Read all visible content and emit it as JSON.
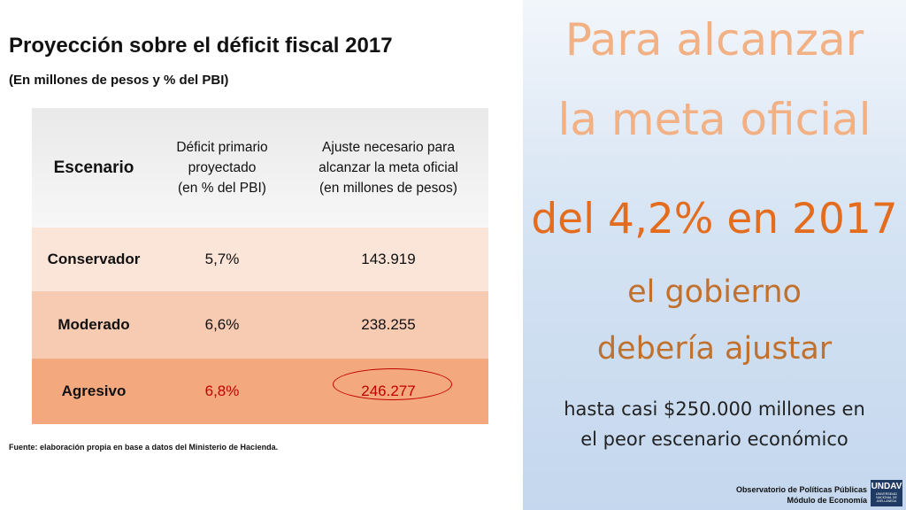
{
  "title": "Proyección sobre el déficit fiscal 2017",
  "subtitle": "(En millones de pesos y % del PBI)",
  "table": {
    "headers": {
      "scenario": "Escenario",
      "deficit": [
        "Déficit primario",
        "proyectado",
        "(en % del PBI)"
      ],
      "adjustment": [
        "Ajuste necesario para",
        "alcanzar la meta oficial",
        "(en millones de pesos)"
      ]
    },
    "rows": [
      {
        "scenario": "Conservador",
        "deficit": "5,7%",
        "adjustment": "143.919"
      },
      {
        "scenario": "Moderado",
        "deficit": "6,6%",
        "adjustment": "238.255"
      },
      {
        "scenario": "Agresivo",
        "deficit": "6,8%",
        "adjustment": "246.277"
      }
    ]
  },
  "source": "Fuente: elaboración propia en base a datos del Ministerio de Hacienda.",
  "panel": {
    "line1": "Para alcanzar",
    "line2": "la meta oficial",
    "line3": "del 4,2% en 2017",
    "line4": "el gobierno",
    "line5": "debería ajustar",
    "line6": "hasta casi $250.000 millones en",
    "line7": "el peor escenario económico"
  },
  "footer": {
    "line1": "Observatorio de Políticas Públicas",
    "line2": "Módulo de Economía"
  },
  "logo": {
    "text": "UNDAV",
    "sub": [
      "UNIVERSIDAD",
      "NACIONAL DE",
      "AVELLANEDA"
    ]
  },
  "colors": {
    "highlight_red": "#c00000",
    "panel_orange_light": "#f2b184",
    "panel_orange": "#e46c1f",
    "panel_brown": "#c0712e",
    "logo_blue": "#1f3b63"
  }
}
